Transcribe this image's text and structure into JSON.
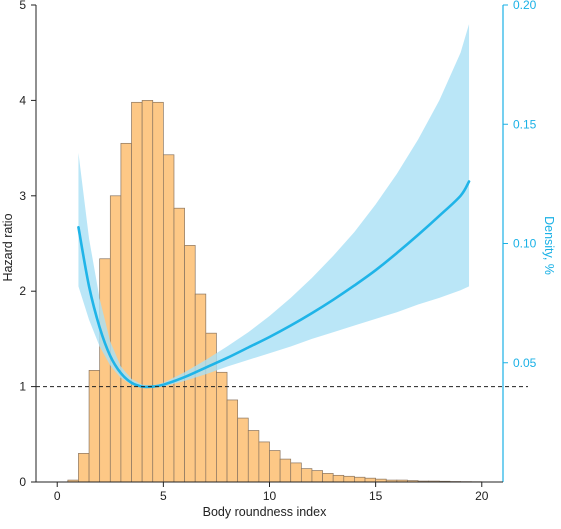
{
  "chart_data": {
    "type": "bar+line",
    "xlabel": "Body roundness index",
    "ylabel_left": "Hazard ratio",
    "ylabel_right": "Density, %",
    "xlim": [
      -1,
      21
    ],
    "ylim_left": [
      0,
      5
    ],
    "ylim_right": [
      0,
      0.2
    ],
    "x_ticks": [
      0,
      5,
      10,
      15,
      20
    ],
    "y_ticks_left": [
      0,
      1,
      2,
      3,
      4,
      5
    ],
    "y_ticks_right": [
      0.05,
      0.1,
      0.15,
      0.2
    ],
    "reference_line_hr": 1,
    "histogram": {
      "bin_width": 0.5,
      "bin_starts": [
        0.5,
        1.0,
        1.5,
        2.0,
        2.5,
        3.0,
        3.5,
        4.0,
        4.5,
        5.0,
        5.5,
        6.0,
        6.5,
        7.0,
        7.5,
        8.0,
        8.5,
        9.0,
        9.5,
        10.0,
        10.5,
        11.0,
        11.5,
        12.0,
        12.5,
        13.0,
        13.5,
        14.0,
        14.5,
        15.0,
        15.5,
        16.0,
        16.5,
        17.0,
        17.5,
        18.0,
        18.5,
        19.0,
        19.5
      ],
      "hr_scale_values": [
        0.02,
        0.3,
        1.17,
        2.34,
        3.0,
        3.55,
        3.98,
        4.0,
        3.98,
        3.43,
        2.87,
        2.48,
        1.97,
        1.56,
        1.15,
        0.86,
        0.67,
        0.54,
        0.42,
        0.33,
        0.24,
        0.2,
        0.14,
        0.12,
        0.09,
        0.07,
        0.06,
        0.05,
        0.04,
        0.03,
        0.02,
        0.02,
        0.015,
        0.01,
        0.01,
        0.008,
        0.005,
        0.004,
        0.003
      ]
    },
    "spline": {
      "name": "Hazard ratio",
      "x": [
        1,
        1.5,
        2,
        2.5,
        3,
        3.5,
        4,
        4.5,
        5,
        6,
        7,
        8,
        9,
        10,
        11,
        12,
        13,
        14,
        15,
        16,
        17,
        18,
        19,
        19.4
      ],
      "y": [
        2.67,
        2.05,
        1.62,
        1.32,
        1.14,
        1.04,
        1.0,
        1.0,
        1.02,
        1.1,
        1.2,
        1.3,
        1.41,
        1.52,
        1.64,
        1.77,
        1.91,
        2.06,
        2.22,
        2.4,
        2.59,
        2.79,
        3.0,
        3.15
      ],
      "ci_lower": [
        2.05,
        1.7,
        1.42,
        1.22,
        1.09,
        1.02,
        0.99,
        0.99,
        1.0,
        1.06,
        1.13,
        1.21,
        1.28,
        1.35,
        1.42,
        1.5,
        1.57,
        1.64,
        1.71,
        1.78,
        1.86,
        1.93,
        2.01,
        2.05
      ],
      "ci_upper": [
        3.45,
        2.55,
        1.92,
        1.47,
        1.21,
        1.08,
        1.02,
        1.01,
        1.04,
        1.15,
        1.28,
        1.42,
        1.57,
        1.74,
        1.93,
        2.14,
        2.37,
        2.62,
        2.91,
        3.23,
        3.59,
        4.0,
        4.5,
        4.8
      ]
    }
  },
  "colors": {
    "bar_fill": "#fdc886",
    "bar_stroke": "#8a7560",
    "line": "#1fb4e8",
    "band": "#a9e0f5",
    "right_axis": "#1ab1e6",
    "reference_line": "#222222"
  }
}
